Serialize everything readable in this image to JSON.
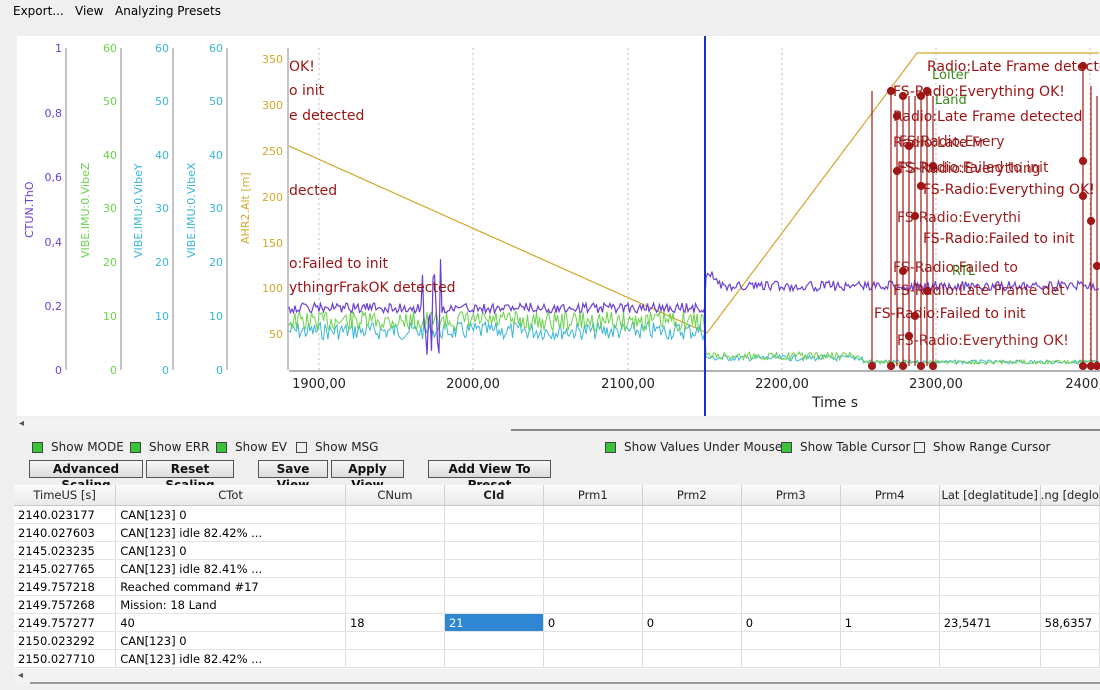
{
  "menu": {
    "export": "Export...",
    "view": "View",
    "presets": "Analyzing Presets"
  },
  "axes": [
    {
      "label": "CTUN.ThO",
      "color": "#6a3fd0",
      "ticks": [
        "1",
        "0,8",
        "0,6",
        "0,4",
        "0,2",
        "0"
      ]
    },
    {
      "label": "VIBE.IMU:0.VibeZ",
      "color": "#6bd24a",
      "ticks": [
        "60",
        "50",
        "40",
        "30",
        "20",
        "10",
        "0"
      ]
    },
    {
      "label": "VIBE.IMU:0.VibeY",
      "color": "#38b6d6",
      "ticks": [
        "60",
        "50",
        "40",
        "30",
        "20",
        "10",
        "0"
      ]
    },
    {
      "label": "VIBE.IMU:0.VibeX",
      "color": "#38b6d6",
      "ticks": [
        "60",
        "50",
        "40",
        "30",
        "20",
        "10",
        "0"
      ]
    },
    {
      "label": "AHR2.Alt [m]",
      "color": "#d2a82a",
      "ticks": [
        "350",
        "300",
        "250",
        "200",
        "150",
        "100",
        "50"
      ]
    }
  ],
  "xaxis": {
    "title": "Time s",
    "ticks": [
      "1900,00",
      "2000,00",
      "2100,00",
      "2200,00",
      "2300,00",
      "2400,"
    ]
  },
  "left_events": [
    "OK!",
    "o init",
    "e detected",
    "dected",
    "o:Failed to init",
    "ythingrFrakOK detected"
  ],
  "right_events": [
    "Radio:Late Frame detected",
    "Loiter",
    "FS-Radio:Everything OK!",
    "Land",
    "Radio:Late Frame detected",
    "FS-Radio:Everything OK!",
    "FS-Radio:Failed to init",
    "RTL",
    "FS-Radio:Failed to init"
  ],
  "controls": {
    "show_mode": "Show MODE",
    "show_err": "Show ERR",
    "show_ev": "Show EV",
    "show_msg": "Show MSG",
    "show_values": "Show Values Under Mouse",
    "show_table_cursor": "Show Table Cursor",
    "show_range_cursor": "Show Range Cursor",
    "advanced_scaling": "Advanced Scaling",
    "reset_scaling": "Reset Scaling",
    "save_view": "Save View",
    "apply_view": "Apply View",
    "add_view_preset": "Add View To Preset"
  },
  "table": {
    "headers": [
      "TimeUS [s]",
      "CTot",
      "CNum",
      "CId",
      "Prm1",
      "Prm2",
      "Prm3",
      "Prm4",
      "Lat [deglatitude]",
      ".ng [deglo"
    ],
    "rows": [
      [
        "2140.023177",
        "CAN[123] 0",
        "",
        "",
        "",
        "",
        "",
        "",
        "",
        ""
      ],
      [
        "2140.027603",
        "CAN[123] idle 82.42% ...",
        "",
        "",
        "",
        "",
        "",
        "",
        "",
        ""
      ],
      [
        "2145.023235",
        "CAN[123] 0",
        "",
        "",
        "",
        "",
        "",
        "",
        "",
        ""
      ],
      [
        "2145.027765",
        "CAN[123] idle 82.41% ...",
        "",
        "",
        "",
        "",
        "",
        "",
        "",
        ""
      ],
      [
        "2149.757218",
        "Reached command #17",
        "",
        "",
        "",
        "",
        "",
        "",
        "",
        ""
      ],
      [
        "2149.757268",
        "Mission: 18 Land",
        "",
        "",
        "",
        "",
        "",
        "",
        "",
        ""
      ],
      [
        "2149.757277",
        "40",
        "18",
        "21",
        "0",
        "0",
        "0",
        "1",
        "23,5471",
        "58,6357"
      ],
      [
        "2150.023292",
        "CAN[123] 0",
        "",
        "",
        "",
        "",
        "",
        "",
        "",
        ""
      ],
      [
        "2150.027710",
        "CAN[123] idle 82.42% ...",
        "",
        "",
        "",
        "",
        "",
        "",
        "",
        ""
      ]
    ]
  }
}
